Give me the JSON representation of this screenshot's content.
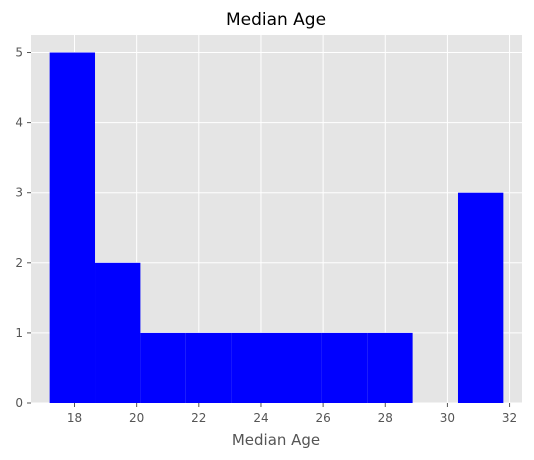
{
  "chart_data": {
    "type": "bar",
    "title": "Median Age",
    "xlabel": "Median Age",
    "ylabel": "",
    "xlim": [
      16.6,
      32.4
    ],
    "ylim": [
      0,
      5.25
    ],
    "xticks": [
      18,
      20,
      22,
      24,
      26,
      28,
      30,
      32
    ],
    "yticks": [
      0,
      1,
      2,
      3,
      4,
      5
    ],
    "grid": true,
    "style": "ggplot",
    "colors": {
      "bar": "#0000ff",
      "background": "#e5e5e5",
      "grid": "#ffffff"
    },
    "bins": [
      {
        "start": 17.2,
        "end": 18.66,
        "count": 5
      },
      {
        "start": 18.66,
        "end": 20.12,
        "count": 2
      },
      {
        "start": 20.12,
        "end": 21.58,
        "count": 1
      },
      {
        "start": 21.58,
        "end": 23.04,
        "count": 1
      },
      {
        "start": 23.04,
        "end": 24.5,
        "count": 1
      },
      {
        "start": 24.5,
        "end": 25.96,
        "count": 1
      },
      {
        "start": 25.96,
        "end": 27.42,
        "count": 1
      },
      {
        "start": 27.42,
        "end": 28.88,
        "count": 1
      },
      {
        "start": 28.88,
        "end": 30.34,
        "count": 0
      },
      {
        "start": 30.34,
        "end": 31.8,
        "count": 3
      }
    ]
  }
}
